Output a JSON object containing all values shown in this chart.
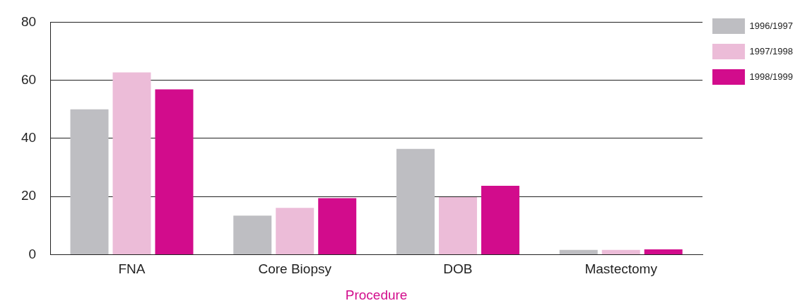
{
  "chart_data": {
    "type": "bar",
    "xlabel": "Procedure",
    "categories": [
      "FNA",
      "Core Biopsy",
      "DOB",
      "Mastectomy"
    ],
    "series": [
      {
        "name": "1996/1997",
        "color": "#bebec2",
        "values": [
          50,
          13.4,
          36.4,
          1.6
        ]
      },
      {
        "name": "1997/1998",
        "color": "#ecbcd8",
        "values": [
          62.7,
          16.1,
          19.8,
          1.6
        ]
      },
      {
        "name": "1998/1999",
        "color": "#d20c8c",
        "values": [
          56.9,
          19.4,
          23.7,
          1.8
        ]
      }
    ],
    "ylim": [
      0,
      80
    ],
    "yticks": [
      0,
      20,
      40,
      60,
      80
    ],
    "grid": "y",
    "legend": "top right"
  }
}
